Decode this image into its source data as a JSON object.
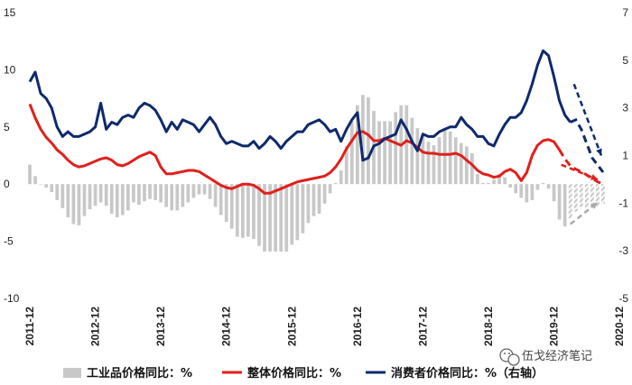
{
  "chart_data": {
    "type": "bar+line",
    "title": "",
    "left_axis": {
      "ticks": [
        "15",
        "10",
        "5",
        "0",
        "-5",
        "-10"
      ],
      "ylim": [
        -10,
        15
      ]
    },
    "right_axis": {
      "ticks": [
        "7",
        "5",
        "3",
        "1",
        "-1",
        "-3",
        "-5"
      ],
      "ylim": [
        -5,
        7
      ]
    },
    "x_tick_labels": [
      "2011-12",
      "2012-12",
      "2013-12",
      "2014-12",
      "2015-12",
      "2016-12",
      "2017-12",
      "2018-12",
      "2019-12",
      "2020-12"
    ],
    "x_start": "2011-12",
    "series": [
      {
        "name": "工业品价格同比：%",
        "type": "bar",
        "axis": "left",
        "color": "#c8c8c8",
        "values": [
          1.7,
          0.7,
          0.0,
          -0.3,
          -0.7,
          -1.4,
          -2.1,
          -2.9,
          -3.5,
          -3.6,
          -2.8,
          -2.2,
          -1.9,
          -1.6,
          -1.9,
          -2.6,
          -2.9,
          -2.7,
          -2.3,
          -1.6,
          -1.8,
          -1.5,
          -1.3,
          -1.4,
          -1.6,
          -2.0,
          -2.3,
          -2.3,
          -2.0,
          -1.6,
          -1.2,
          -0.9,
          -0.9,
          -1.3,
          -2.0,
          -2.7,
          -3.3,
          -3.9,
          -4.6,
          -4.7,
          -4.6,
          -4.8,
          -5.4,
          -5.9,
          -5.9,
          -5.9,
          -5.9,
          -5.9,
          -5.3,
          -4.9,
          -4.3,
          -3.4,
          -2.8,
          -2.6,
          -1.7,
          -0.8,
          0.1,
          1.2,
          3.3,
          5.5,
          6.9,
          7.8,
          7.6,
          6.4,
          5.5,
          5.5,
          5.5,
          6.3,
          6.9,
          6.9,
          5.8,
          4.9,
          4.3,
          3.7,
          3.4,
          4.1,
          4.7,
          4.6,
          4.1,
          3.6,
          3.3,
          2.7,
          0.9,
          0.1,
          0.1,
          0.4,
          0.9,
          0.6,
          -0.3,
          -0.8,
          -1.2,
          -1.6,
          -1.4,
          -0.5,
          0.1,
          -0.4,
          -1.5,
          -3.1,
          -3.7,
          -3.0,
          -2.4,
          -2.0,
          -2.1,
          -2.1,
          -1.9,
          -1.7
        ],
        "forecast_from_index": 99
      },
      {
        "name": "整体价格同比：%",
        "type": "line",
        "axis": "left",
        "color": "#e0201c",
        "values": [
          7.0,
          5.8,
          4.8,
          4.1,
          3.6,
          3.0,
          2.6,
          2.1,
          1.7,
          1.5,
          1.6,
          1.8,
          2.0,
          2.2,
          2.3,
          2.1,
          1.7,
          1.6,
          1.8,
          2.1,
          2.4,
          2.6,
          2.8,
          2.5,
          1.5,
          0.9,
          0.9,
          1.0,
          1.1,
          1.2,
          1.2,
          1.1,
          0.8,
          0.5,
          0.2,
          -0.1,
          -0.3,
          -0.4,
          -0.2,
          0.0,
          0.0,
          -0.1,
          -0.4,
          -0.8,
          -0.8,
          -0.6,
          -0.4,
          -0.2,
          0.0,
          0.2,
          0.3,
          0.4,
          0.5,
          0.6,
          0.7,
          1.0,
          1.5,
          2.2,
          3.1,
          3.8,
          4.5,
          4.6,
          4.3,
          3.8,
          3.8,
          4.0,
          3.8,
          3.6,
          3.4,
          3.8,
          3.6,
          3.2,
          2.8,
          2.7,
          2.7,
          2.6,
          2.6,
          2.6,
          2.7,
          2.5,
          2.1,
          1.7,
          1.2,
          0.9,
          0.8,
          0.6,
          0.7,
          1.1,
          1.3,
          1.0,
          0.3,
          1.0,
          2.5,
          3.4,
          3.8,
          3.9,
          3.7,
          3.0,
          2.2,
          1.6,
          1.3,
          1.1,
          0.8,
          0.5,
          0.2,
          0.0
        ],
        "forecast_from_index": 97
      },
      {
        "name": "消费者价格同比：%（右轴）",
        "type": "line",
        "axis": "right",
        "color": "#0f2a6b",
        "values": [
          4.1,
          4.5,
          3.6,
          3.4,
          3.0,
          2.2,
          1.8,
          2.0,
          1.8,
          1.8,
          1.9,
          2.0,
          2.2,
          3.2,
          2.1,
          2.4,
          2.3,
          2.6,
          2.7,
          2.6,
          3.0,
          3.2,
          3.1,
          2.9,
          2.5,
          2.0,
          2.4,
          2.1,
          2.5,
          2.4,
          2.3,
          2.0,
          2.3,
          2.6,
          2.3,
          1.8,
          1.5,
          1.6,
          1.5,
          1.4,
          1.4,
          1.6,
          1.3,
          1.5,
          1.8,
          1.6,
          1.3,
          1.6,
          1.8,
          2.0,
          2.0,
          2.3,
          2.4,
          2.5,
          2.3,
          2.0,
          2.1,
          1.6,
          2.1,
          2.5,
          2.8,
          0.8,
          0.9,
          1.4,
          1.5,
          1.7,
          1.8,
          1.9,
          2.5,
          2.1,
          1.6,
          1.2,
          1.9,
          1.8,
          1.8,
          2.0,
          2.1,
          2.2,
          2.2,
          2.6,
          2.3,
          2.1,
          1.8,
          1.8,
          1.5,
          1.4,
          1.9,
          2.3,
          2.6,
          2.6,
          2.8,
          3.3,
          4.0,
          4.8,
          5.4,
          5.2,
          4.3,
          3.3,
          2.7,
          2.4,
          2.5,
          2.1,
          1.5,
          0.9,
          0.6,
          0.3
        ],
        "forecast_from_index": 99
      }
    ],
    "forecast_arrows": [
      {
        "series": 0,
        "color": "#aaaaaa"
      },
      {
        "series": 1,
        "color": "#e0201c"
      },
      {
        "series": 2,
        "color": "#0f2a6b"
      }
    ]
  },
  "watermark": {
    "text": "伍戈经济笔记",
    "icon": "wechat-icon"
  },
  "colors": {
    "bar": "#c8c8c8",
    "overall": "#e0201c",
    "cpi": "#0f2a6b"
  }
}
